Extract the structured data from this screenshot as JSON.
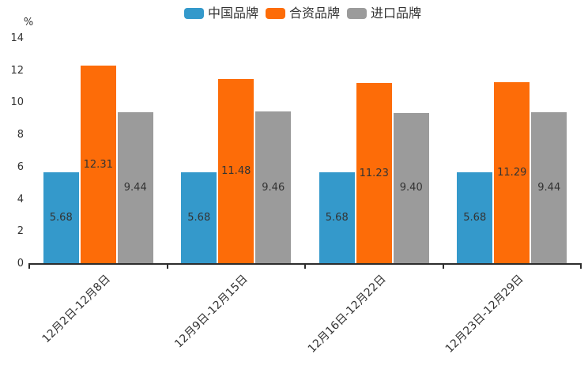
{
  "chart_data": {
    "type": "bar",
    "title": "",
    "unit_label": "%",
    "legend_position": "top",
    "grid": false,
    "background_color": "#ffffff",
    "axis_color": "#2d2d2d",
    "label_color": "#333333",
    "categories": [
      "12月2日-12月8日",
      "12月9日-12月15日",
      "12月16日-12月22日",
      "12月23日-12月29日"
    ],
    "series": [
      {
        "name": "中国品牌",
        "color": "#3499cb",
        "values": [
          5.68,
          5.68,
          5.68,
          5.68
        ]
      },
      {
        "name": "合资品牌",
        "color": "#fd6c08",
        "values": [
          12.31,
          11.48,
          11.23,
          11.29
        ]
      },
      {
        "name": "进口品牌",
        "color": "#9b9b9b",
        "values": [
          9.44,
          9.46,
          9.4,
          9.44
        ]
      }
    ],
    "y_axis": {
      "min": 0,
      "max": 14,
      "step": 2,
      "ticks": [
        0,
        2,
        4,
        6,
        8,
        10,
        12,
        14
      ]
    },
    "value_label_decimals": 2
  }
}
